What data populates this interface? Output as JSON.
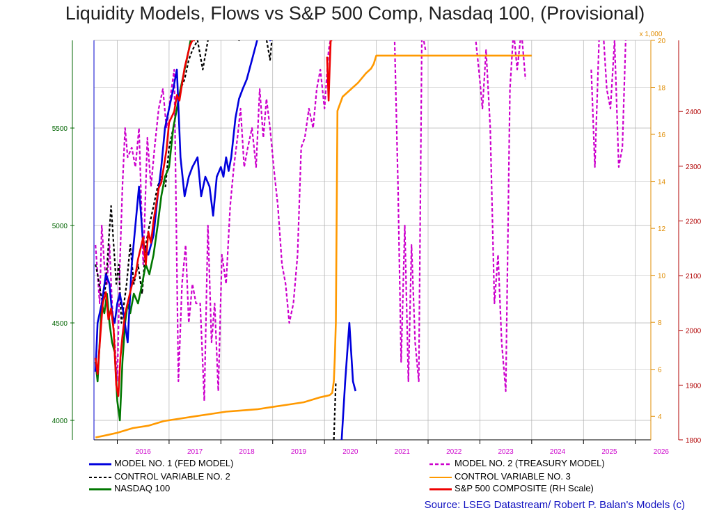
{
  "chart_data": {
    "type": "line",
    "title": "Liquidity Models, Flows vs S&P 500 Comp, Nasdaq 100, (Provisional)",
    "source": "Source: LSEG Datastream/ Robert P. Balan's Models (c)",
    "x_ticks": [
      "2016",
      "2017",
      "2018",
      "2019",
      "2020",
      "2021",
      "2022",
      "2023",
      "2024",
      "2025",
      "2026"
    ],
    "x_range": [
      2015.55,
      2026.3
    ],
    "left_axis": {
      "range": [
        3900,
        5950
      ],
      "ticks": [
        4000,
        4500,
        5000,
        5500
      ],
      "color": "#006400"
    },
    "right_axis_inner": {
      "range": [
        3.0,
        20.0
      ],
      "ticks": [
        4,
        6,
        8,
        10,
        12,
        14,
        16,
        18,
        20
      ],
      "unit_label": "x 1,000",
      "color": "#e08c00"
    },
    "right_axis_outer": {
      "range": [
        1800,
        2530
      ],
      "ticks": [
        1800,
        1900,
        2000,
        2100,
        2200,
        2300,
        2400
      ],
      "color": "#b00000"
    },
    "grid": true,
    "series": [
      {
        "name": "MODEL NO. 1 (FED MODEL)",
        "color": "#0000dd",
        "dash": "solid",
        "axis": "left",
        "x": [
          2015.58,
          2015.62,
          2015.7,
          2015.78,
          2015.85,
          2015.9,
          2015.95,
          2016.0,
          2016.05,
          2016.12,
          2016.2,
          2016.28,
          2016.35,
          2016.42,
          2016.5,
          2016.6,
          2016.7,
          2016.78,
          2016.85,
          2016.92,
          2017.0,
          2017.08,
          2017.15,
          2017.22,
          2017.3,
          2017.38,
          2017.45,
          2017.55,
          2017.62,
          2017.7,
          2017.78,
          2017.85,
          2017.92,
          2018.0,
          2018.05,
          2018.1,
          2018.15,
          2018.2,
          2018.28,
          2018.35,
          2018.42,
          2018.5,
          2018.6,
          2018.7,
          2018.8,
          2018.88,
          2018.95,
          2019.0,
          2020.25,
          2020.32,
          2020.4,
          2020.48,
          2020.55,
          2020.6
        ],
        "values": [
          4250,
          4500,
          4600,
          4750,
          4700,
          4550,
          4500,
          4600,
          4650,
          4550,
          4400,
          4800,
          5000,
          5200,
          4900,
          4850,
          4950,
          5150,
          5300,
          5500,
          5600,
          5700,
          5800,
          5350,
          5150,
          5250,
          5300,
          5350,
          5150,
          5250,
          5200,
          5050,
          5250,
          5300,
          5250,
          5350,
          5280,
          5350,
          5550,
          5650,
          5700,
          5750,
          5850,
          5950,
          6000,
          6000,
          5950,
          6000,
          3900,
          3850,
          4200,
          4500,
          4200,
          4150
        ]
      },
      {
        "name": "CONTROL VARIABLE NO. 2",
        "color": "#000000",
        "dash": "4,3",
        "axis": "left",
        "x": [
          2015.58,
          2015.62,
          2015.68,
          2015.72,
          2015.78,
          2015.83,
          2015.88,
          2015.93,
          2015.98,
          2016.03,
          2016.08,
          2016.13,
          2016.18,
          2016.25,
          2016.32,
          2016.4,
          2016.48,
          2016.55,
          2016.62,
          2016.7,
          2016.78,
          2016.85,
          2016.93,
          2017.0,
          2017.08,
          2017.15,
          2017.22,
          2017.3,
          2017.38,
          2017.45,
          2017.55,
          2017.65,
          2017.75,
          2017.85,
          2017.95,
          2018.05,
          2018.15,
          2018.25,
          2018.35,
          2018.45,
          2018.55,
          2018.65,
          2018.75,
          2018.85,
          2018.95,
          2019.0,
          2020.18,
          2020.22
        ],
        "values": [
          4800,
          4750,
          4650,
          4600,
          4700,
          4900,
          5100,
          4900,
          4700,
          4800,
          4500,
          4600,
          4700,
          4900,
          4700,
          4800,
          4650,
          4900,
          5000,
          5100,
          5200,
          5250,
          5200,
          5400,
          5500,
          5600,
          5700,
          5750,
          5850,
          5900,
          5950,
          5800,
          5950,
          6000,
          6000,
          6000,
          6000,
          6000,
          5950,
          6000,
          6000,
          6000,
          5950,
          6000,
          5850,
          6000,
          3900,
          4200
        ]
      },
      {
        "name": "NASDAQ 100",
        "color": "#007700",
        "dash": "solid",
        "axis": "left",
        "x": [
          2015.58,
          2015.62,
          2015.66,
          2015.7,
          2015.75,
          2015.8,
          2015.85,
          2015.9,
          2015.95,
          2016.0,
          2016.05,
          2016.1,
          2016.15,
          2016.2,
          2016.25,
          2016.32,
          2016.4,
          2016.48,
          2016.55,
          2016.62,
          2016.7,
          2016.78,
          2016.85,
          2016.92,
          2017.0,
          2017.08,
          2017.15,
          2017.22,
          2017.3,
          2017.38,
          2017.45
        ],
        "values": [
          4300,
          4200,
          4400,
          4600,
          4550,
          4650,
          4500,
          4400,
          4350,
          4100,
          4000,
          4300,
          4500,
          4600,
          4550,
          4650,
          4600,
          4700,
          4800,
          4750,
          4850,
          5000,
          5150,
          5250,
          5300,
          5500,
          5600,
          5700,
          5800,
          5900,
          6000
        ]
      },
      {
        "name": "MODEL NO. 2 (TREASURY MODEL)",
        "color": "#cc00cc",
        "dash": "5,3",
        "axis": "left",
        "x": [
          2015.58,
          2015.62,
          2015.66,
          2015.7,
          2015.75,
          2015.8,
          2015.85,
          2015.9,
          2015.95,
          2016.0,
          2016.05,
          2016.1,
          2016.15,
          2016.2,
          2016.28,
          2016.35,
          2016.42,
          2016.5,
          2016.58,
          2016.65,
          2016.72,
          2016.8,
          2016.88,
          2016.95,
          2017.02,
          2017.1,
          2017.18,
          2017.25,
          2017.32,
          2017.38,
          2017.45,
          2017.52,
          2017.6,
          2017.68,
          2017.75,
          2017.82,
          2017.88,
          2017.95,
          2018.02,
          2018.1,
          2018.18,
          2018.25,
          2018.32,
          2018.38,
          2018.45,
          2018.52,
          2018.6,
          2018.68,
          2018.75,
          2018.82,
          2018.88,
          2018.95,
          2019.02,
          2019.1,
          2019.18,
          2019.25,
          2019.32,
          2019.4,
          2019.48,
          2019.55,
          2019.62,
          2019.7,
          2019.78,
          2019.85,
          2019.92,
          2020.0,
          2020.08,
          2020.15,
          2020.22,
          2021.35,
          2021.42,
          2021.48,
          2021.55,
          2021.62,
          2021.68,
          2021.75,
          2021.82,
          2021.88,
          2021.95,
          2022.9,
          2022.98,
          2023.05,
          2023.12,
          2023.2,
          2023.28,
          2023.35,
          2023.42,
          2023.5,
          2023.58,
          2023.65,
          2023.72,
          2023.8,
          2023.88,
          2025.15,
          2025.22,
          2025.3,
          2025.38,
          2025.45,
          2025.52,
          2025.6,
          2025.68,
          2025.75,
          2025.82
        ],
        "values": [
          4900,
          4750,
          4600,
          5000,
          4800,
          4700,
          4900,
          4600,
          4400,
          4200,
          4800,
          5200,
          5500,
          5350,
          5400,
          5300,
          5500,
          4800,
          5450,
          5200,
          5400,
          5600,
          5700,
          5500,
          5650,
          5800,
          4200,
          4700,
          4900,
          4500,
          4700,
          4600,
          4600,
          4100,
          5000,
          4400,
          4600,
          4150,
          4850,
          4700,
          5100,
          5300,
          5450,
          5600,
          5300,
          5400,
          5500,
          5300,
          5700,
          5450,
          5650,
          5500,
          5300,
          5100,
          4800,
          4700,
          4500,
          4600,
          4850,
          5400,
          5450,
          5600,
          5500,
          5700,
          5800,
          5600,
          5900,
          6000,
          5950,
          6000,
          5200,
          4300,
          5000,
          4200,
          4900,
          4400,
          4200,
          6000,
          5900,
          6000,
          5800,
          5600,
          5900,
          5500,
          4600,
          4850,
          4400,
          4150,
          5700,
          6000,
          5800,
          6000,
          5750,
          5800,
          5300,
          5950,
          6000,
          5700,
          5600,
          5950,
          5300,
          5400,
          6000
        ]
      },
      {
        "name": "CONTROL VARIABLE NO. 3",
        "color": "#ff9900",
        "dash": "solid",
        "axis": "right_inner",
        "x": [
          2015.58,
          2015.8,
          2016.0,
          2016.3,
          2016.6,
          2016.9,
          2017.2,
          2017.5,
          2017.8,
          2018.1,
          2018.4,
          2018.7,
          2019.0,
          2019.3,
          2019.6,
          2019.9,
          2020.1,
          2020.15,
          2020.18,
          2020.2,
          2020.22,
          2020.25,
          2020.35,
          2020.5,
          2020.65,
          2020.8,
          2020.9,
          2020.95,
          2021.0,
          2021.5,
          2022.0,
          2022.5,
          2023.0,
          2023.5,
          2023.8,
          2024.0
        ],
        "values": [
          3.1,
          3.2,
          3.3,
          3.5,
          3.6,
          3.8,
          3.9,
          4.0,
          4.1,
          4.2,
          4.25,
          4.3,
          4.4,
          4.5,
          4.6,
          4.8,
          4.9,
          5.0,
          5.5,
          6.5,
          8.0,
          17.0,
          17.6,
          17.9,
          18.2,
          18.6,
          18.8,
          19.0,
          19.35,
          19.35,
          19.35,
          19.35,
          19.35,
          19.35,
          19.35,
          19.35
        ]
      },
      {
        "name": "S&P 500 COMPOSITE (RH Scale)",
        "color": "#ee0000",
        "dash": "solid",
        "axis": "right_outer",
        "x": [
          2015.58,
          2015.62,
          2015.68,
          2015.72,
          2015.78,
          2015.83,
          2015.88,
          2015.93,
          2015.98,
          2016.02,
          2016.06,
          2016.1,
          2016.15,
          2016.2,
          2016.25,
          2016.3,
          2016.35,
          2016.4,
          2016.45,
          2016.5,
          2016.55,
          2016.6,
          2016.65,
          2016.7,
          2016.75,
          2016.8,
          2016.85,
          2016.9,
          2016.95,
          2017.0,
          2017.05,
          2017.1,
          2017.15,
          2017.2,
          2017.25,
          2017.3,
          2017.35,
          2017.4,
          2017.45,
          2017.5,
          2020.05,
          2020.08,
          2020.1,
          2020.12,
          2020.15
        ],
        "values": [
          1950,
          1920,
          2000,
          2050,
          2070,
          2020,
          2040,
          2000,
          1900,
          1880,
          1950,
          1990,
          2030,
          2050,
          2070,
          2090,
          2100,
          2130,
          2150,
          2170,
          2120,
          2180,
          2160,
          2200,
          2230,
          2260,
          2270,
          2300,
          2330,
          2380,
          2390,
          2400,
          2430,
          2420,
          2450,
          2480,
          2500,
          2520,
          2530,
          2530,
          2500,
          2420,
          2480,
          2530,
          2530
        ]
      }
    ]
  }
}
